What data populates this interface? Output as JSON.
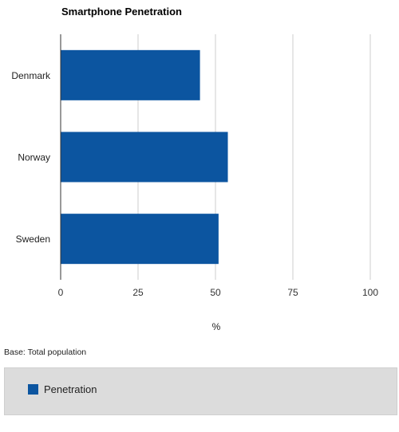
{
  "chart_data": {
    "type": "bar",
    "orientation": "horizontal",
    "title": "Smartphone Penetration",
    "categories": [
      "Denmark",
      "Norway",
      "Sweden"
    ],
    "series": [
      {
        "name": "Penetration",
        "values": [
          45,
          54,
          51
        ],
        "color": "#0c55a0"
      }
    ],
    "xlabel": "%",
    "ylabel": "",
    "xlim": [
      0,
      100
    ],
    "xticks": [
      0,
      25,
      50,
      75,
      100
    ],
    "grid": true,
    "legend_position": "bottom"
  },
  "footnote": "Base: Total population",
  "legend": {
    "label": "Penetration",
    "color": "#0c55a0"
  }
}
